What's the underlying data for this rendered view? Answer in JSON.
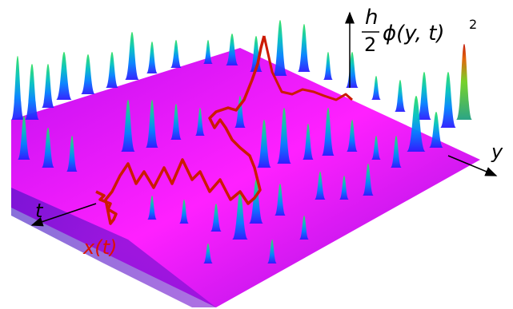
{
  "labels": {
    "height_fraction_num": "h",
    "height_fraction_den": "2",
    "height_func": "ϕ(y, t)",
    "height_exp": "2",
    "y_axis": "y",
    "t_axis": "t",
    "path": "x(t)"
  },
  "colors": {
    "surface_low": "#ff00ff",
    "surface_mid_low": "#2a1aff",
    "surface_mid": "#00a0e0",
    "surface_high": "#20e070",
    "peak": "#d02000",
    "path": "#cc1a00",
    "path_label": "#dd1100",
    "axis": "#000000",
    "background": "#ffffff"
  }
}
